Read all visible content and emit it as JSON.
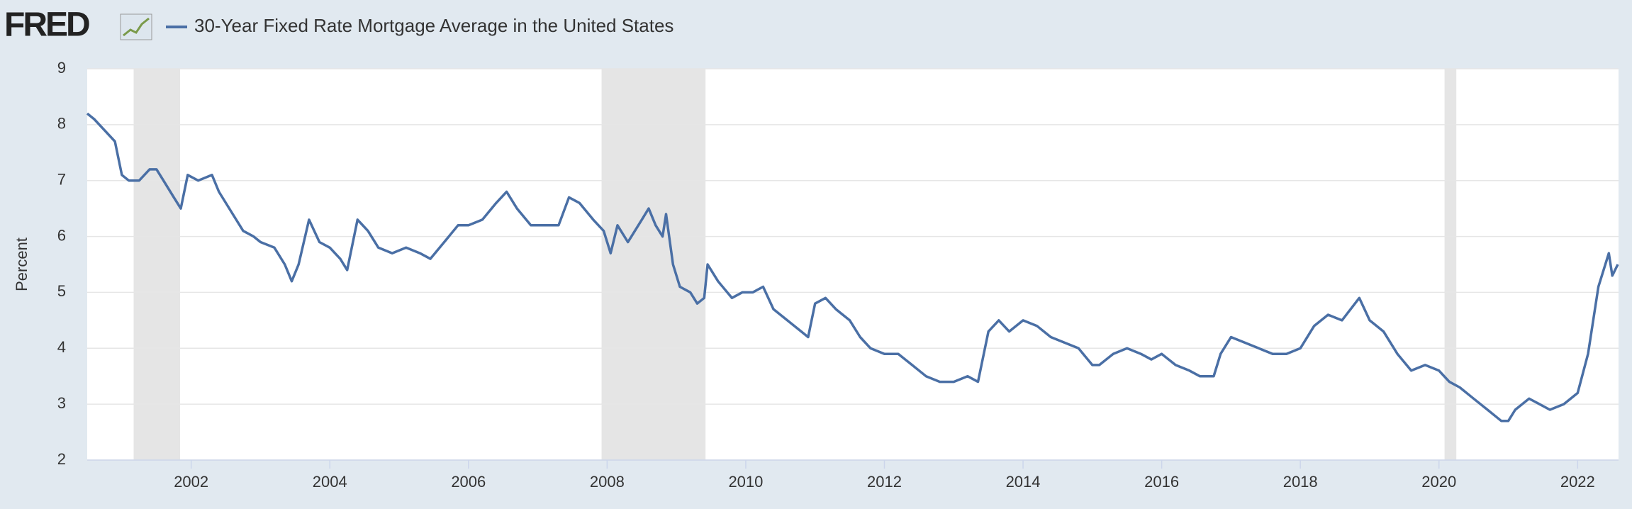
{
  "chart_data": {
    "type": "line",
    "logo": "FRED",
    "title": "30-Year Fixed Rate Mortgage Average in the United States",
    "y_label": "Percent",
    "xlim": [
      2000.5,
      2022.59
    ],
    "xticks": [
      2002,
      2004,
      2006,
      2008,
      2010,
      2012,
      2014,
      2016,
      2018,
      2020,
      2022
    ],
    "ylim": [
      2,
      9
    ],
    "yticks": [
      2,
      3,
      4,
      5,
      6,
      7,
      8,
      9
    ],
    "grid": true,
    "recession_color": "#e5e5e5",
    "recessions": [
      [
        2001.17,
        2001.84
      ],
      [
        2007.92,
        2009.42
      ],
      [
        2020.08,
        2020.25
      ]
    ],
    "x": [
      2000.5,
      2000.6,
      2000.75,
      2000.9,
      2001.0,
      2001.1,
      2001.25,
      2001.4,
      2001.5,
      2001.6,
      2001.75,
      2001.85,
      2001.95,
      2002.1,
      2002.3,
      2002.4,
      2002.6,
      2002.75,
      2002.9,
      2003.0,
      2003.2,
      2003.35,
      2003.45,
      2003.55,
      2003.7,
      2003.85,
      2004.0,
      2004.15,
      2004.25,
      2004.4,
      2004.55,
      2004.7,
      2004.9,
      2005.1,
      2005.3,
      2005.45,
      2005.65,
      2005.85,
      2006.0,
      2006.2,
      2006.4,
      2006.55,
      2006.7,
      2006.9,
      2007.1,
      2007.3,
      2007.45,
      2007.6,
      2007.8,
      2007.95,
      2008.05,
      2008.15,
      2008.3,
      2008.5,
      2008.6,
      2008.7,
      2008.8,
      2008.85,
      2008.95,
      2009.05,
      2009.2,
      2009.3,
      2009.4,
      2009.45,
      2009.6,
      2009.8,
      2009.95,
      2010.1,
      2010.25,
      2010.4,
      2010.6,
      2010.8,
      2010.9,
      2011.0,
      2011.15,
      2011.3,
      2011.5,
      2011.65,
      2011.8,
      2012.0,
      2012.2,
      2012.4,
      2012.6,
      2012.8,
      2013.0,
      2013.2,
      2013.35,
      2013.5,
      2013.65,
      2013.8,
      2014.0,
      2014.2,
      2014.4,
      2014.6,
      2014.8,
      2015.0,
      2015.1,
      2015.3,
      2015.5,
      2015.7,
      2015.85,
      2016.0,
      2016.2,
      2016.4,
      2016.55,
      2016.75,
      2016.85,
      2017.0,
      2017.2,
      2017.4,
      2017.6,
      2017.8,
      2018.0,
      2018.2,
      2018.4,
      2018.6,
      2018.85,
      2019.0,
      2019.2,
      2019.4,
      2019.6,
      2019.8,
      2020.0,
      2020.15,
      2020.3,
      2020.5,
      2020.7,
      2020.9,
      2021.0,
      2021.1,
      2021.3,
      2021.45,
      2021.6,
      2021.8,
      2022.0,
      2022.15,
      2022.3,
      2022.45,
      2022.5,
      2022.58
    ],
    "series": [
      {
        "name": "30-Year Fixed Rate Mortgage Average in the United States",
        "color": "#4a6fa5",
        "values": [
          8.2,
          8.1,
          7.9,
          7.7,
          7.1,
          7.0,
          7.0,
          7.2,
          7.2,
          7.0,
          6.7,
          6.5,
          7.1,
          7.0,
          7.1,
          6.8,
          6.4,
          6.1,
          6.0,
          5.9,
          5.8,
          5.5,
          5.2,
          5.5,
          6.3,
          5.9,
          5.8,
          5.6,
          5.4,
          6.3,
          6.1,
          5.8,
          5.7,
          5.8,
          5.7,
          5.6,
          5.9,
          6.2,
          6.2,
          6.3,
          6.6,
          6.8,
          6.5,
          6.2,
          6.2,
          6.2,
          6.7,
          6.6,
          6.3,
          6.1,
          5.7,
          6.2,
          5.9,
          6.3,
          6.5,
          6.2,
          6.0,
          6.4,
          5.5,
          5.1,
          5.0,
          4.8,
          4.9,
          5.5,
          5.2,
          4.9,
          5.0,
          5.0,
          5.1,
          4.7,
          4.5,
          4.3,
          4.2,
          4.8,
          4.9,
          4.7,
          4.5,
          4.2,
          4.0,
          3.9,
          3.9,
          3.7,
          3.5,
          3.4,
          3.4,
          3.5,
          3.4,
          4.3,
          4.5,
          4.3,
          4.5,
          4.4,
          4.2,
          4.1,
          4.0,
          3.7,
          3.7,
          3.9,
          4.0,
          3.9,
          3.8,
          3.9,
          3.7,
          3.6,
          3.5,
          3.5,
          3.9,
          4.2,
          4.1,
          4.0,
          3.9,
          3.9,
          4.0,
          4.4,
          4.6,
          4.5,
          4.9,
          4.5,
          4.3,
          3.9,
          3.6,
          3.7,
          3.6,
          3.4,
          3.3,
          3.1,
          2.9,
          2.7,
          2.7,
          2.9,
          3.1,
          3.0,
          2.9,
          3.0,
          3.2,
          3.9,
          5.1,
          5.7,
          5.3,
          5.5
        ]
      }
    ]
  }
}
